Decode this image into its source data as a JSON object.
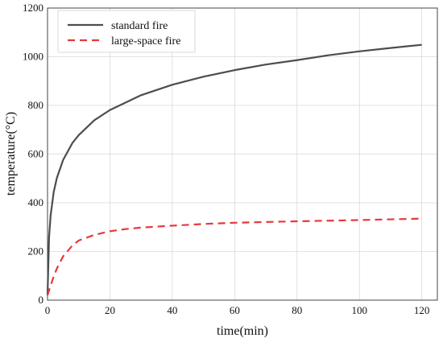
{
  "chart_data": {
    "type": "line",
    "xlabel": "time(min)",
    "ylabel": "temperature(°C)",
    "xlim": [
      0,
      125
    ],
    "ylim": [
      0,
      1200
    ],
    "xticks": [
      0,
      20,
      40,
      60,
      80,
      100,
      120
    ],
    "yticks": [
      0,
      200,
      400,
      600,
      800,
      1000,
      1200
    ],
    "grid": true,
    "legend_position": "top-left",
    "series": [
      {
        "name": "standard fire",
        "color": "#4d4d4d",
        "style": "solid",
        "x": [
          0,
          0.5,
          1,
          2,
          3,
          5,
          8,
          10,
          15,
          20,
          30,
          40,
          50,
          60,
          70,
          80,
          90,
          100,
          110,
          120
        ],
        "y": [
          20,
          261,
          349,
          445,
          502,
          576,
          646,
          678,
          739,
          781,
          842,
          885,
          918,
          945,
          968,
          986,
          1006,
          1022,
          1036,
          1049
        ]
      },
      {
        "name": "large-space fire",
        "color": "#e8383d",
        "style": "dashed",
        "x": [
          0,
          1,
          2,
          3,
          5,
          8,
          10,
          15,
          20,
          25,
          30,
          40,
          50,
          60,
          80,
          100,
          120
        ],
        "y": [
          20,
          60,
          98,
          130,
          180,
          225,
          245,
          268,
          283,
          292,
          298,
          306,
          313,
          318,
          324,
          329,
          335
        ]
      }
    ]
  }
}
